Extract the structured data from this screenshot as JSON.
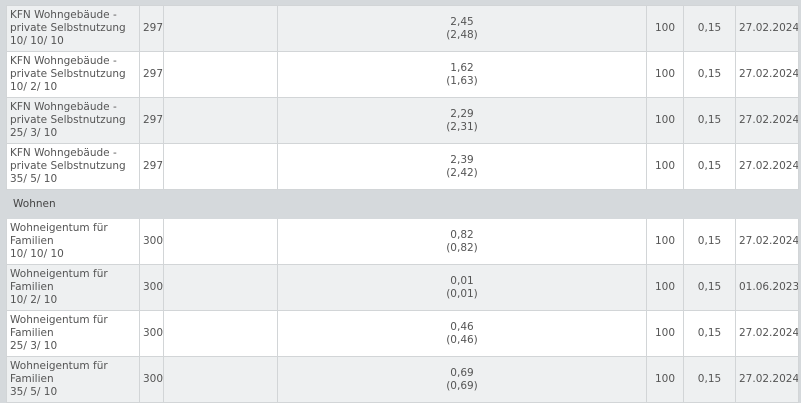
{
  "rows_top": [
    {
      "name": [
        "KFN Wohngebäude -",
        "private Selbstnutzung",
        "10/ 10/ 10"
      ],
      "code": "297",
      "value": "2,45",
      "value_paren": "(2,48)",
      "pct": "100",
      "fee": "0,15",
      "date": "27.02.2024"
    },
    {
      "name": [
        "KFN Wohngebäude -",
        "private Selbstnutzung",
        "10/ 2/ 10"
      ],
      "code": "297",
      "value": "1,62",
      "value_paren": "(1,63)",
      "pct": "100",
      "fee": "0,15",
      "date": "27.02.2024"
    },
    {
      "name": [
        "KFN Wohngebäude -",
        "private Selbstnutzung",
        "25/ 3/ 10"
      ],
      "code": "297",
      "value": "2,29",
      "value_paren": "(2,31)",
      "pct": "100",
      "fee": "0,15",
      "date": "27.02.2024"
    },
    {
      "name": [
        "KFN Wohngebäude -",
        "private Selbstnutzung",
        "35/ 5/ 10"
      ],
      "code": "297",
      "value": "2,39",
      "value_paren": "(2,42)",
      "pct": "100",
      "fee": "0,15",
      "date": "27.02.2024"
    }
  ],
  "group_label": "Wohnen",
  "rows_bottom": [
    {
      "name": [
        "Wohneigentum für",
        "Familien",
        "10/ 10/ 10"
      ],
      "code": "300",
      "value": "0,82",
      "value_paren": "(0,82)",
      "pct": "100",
      "fee": "0,15",
      "date": "27.02.2024"
    },
    {
      "name": [
        "Wohneigentum für",
        "Familien",
        "10/ 2/ 10"
      ],
      "code": "300",
      "value": "0,01",
      "value_paren": "(0,01)",
      "pct": "100",
      "fee": "0,15",
      "date": "01.06.2023"
    },
    {
      "name": [
        "Wohneigentum für",
        "Familien",
        "25/ 3/ 10"
      ],
      "code": "300",
      "value": "0,46",
      "value_paren": "(0,46)",
      "pct": "100",
      "fee": "0,15",
      "date": "27.02.2024"
    },
    {
      "name": [
        "Wohneigentum für",
        "Familien",
        "35/ 5/ 10"
      ],
      "code": "300",
      "value": "0,69",
      "value_paren": "(0,69)",
      "pct": "100",
      "fee": "0,15",
      "date": "27.02.2024"
    }
  ]
}
